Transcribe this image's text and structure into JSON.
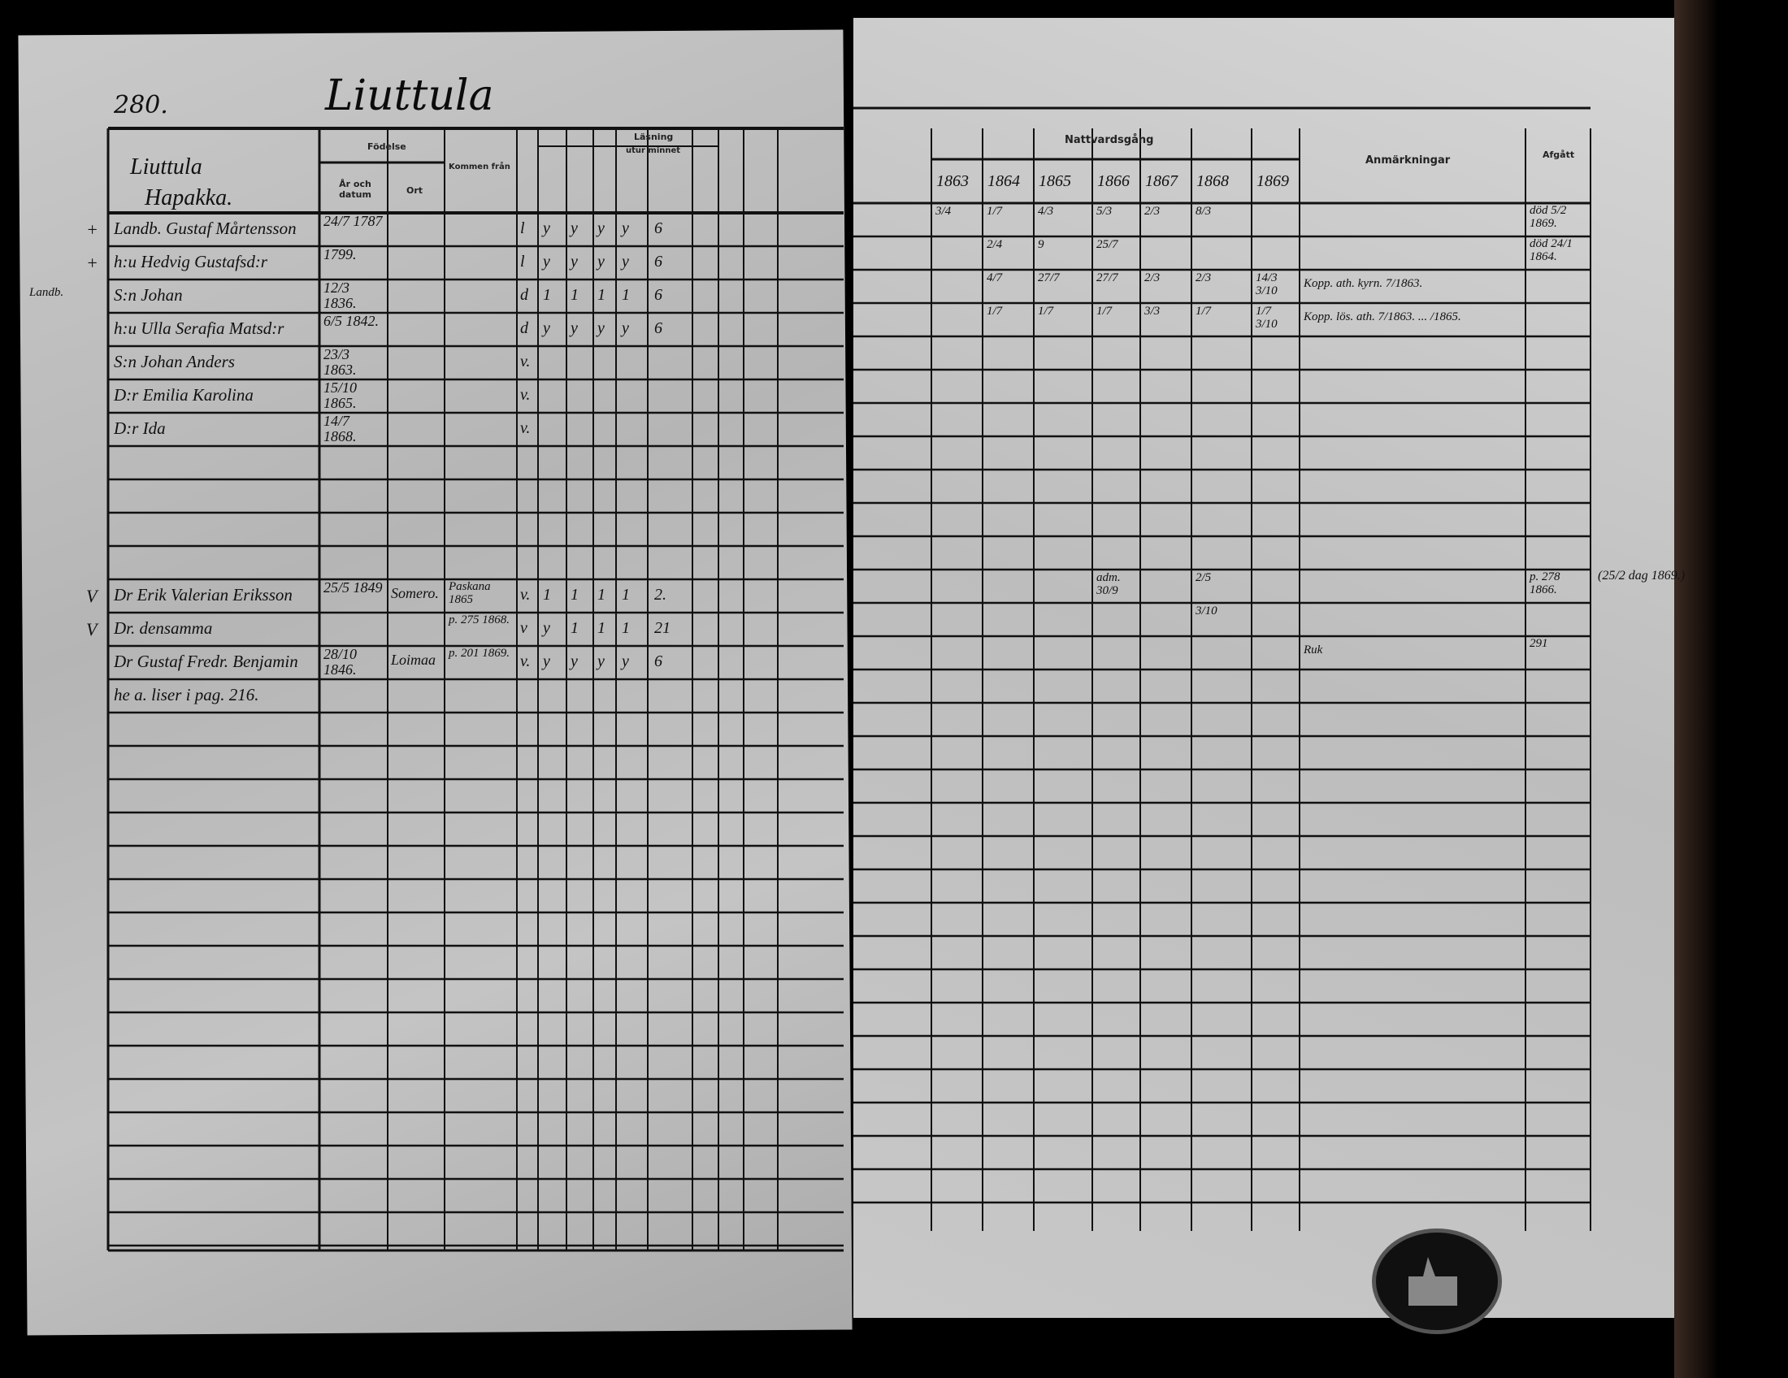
{
  "left_page": {
    "page_number": "280.",
    "village": "Liuttula",
    "household": [
      "Liuttula",
      "Hapakka."
    ],
    "headers": {
      "birth": "Födelse",
      "year_date": "År och datum",
      "place": "Ort",
      "came_from": "Kommen från",
      "reading": "Läsning",
      "from_memory": "utur minnet"
    },
    "rows": [
      {
        "row": 0,
        "mark": "+",
        "name": "Landb. Gustaf Mårtensson",
        "born": "24/7 1787",
        "marks": [
          "l",
          "y",
          "y",
          "y",
          "y",
          "6"
        ]
      },
      {
        "row": 1,
        "mark": "+",
        "name": "h:u Hedvig Gustafsd:r",
        "born": "1799.",
        "marks": [
          "l",
          "y",
          "y",
          "y",
          "y",
          "6"
        ]
      },
      {
        "row": 2,
        "mark": "Landb.",
        "name": "S:n Johan",
        "born": "12/3 1836.",
        "marks": [
          "d",
          "1",
          "1",
          "1",
          "1",
          "6"
        ]
      },
      {
        "row": 3,
        "mark": "",
        "name": "h:u Ulla Serafia Matsd:r",
        "born": "6/5 1842.",
        "marks": [
          "d",
          "y",
          "y",
          "y",
          "y",
          "6"
        ]
      },
      {
        "row": 4,
        "mark": "",
        "name": "S:n Johan Anders",
        "born": "23/3 1863.",
        "marks": [
          "v."
        ]
      },
      {
        "row": 5,
        "mark": "",
        "name": "D:r Emilia Karolina",
        "born": "15/10 1865.",
        "marks": [
          "v."
        ]
      },
      {
        "row": 6,
        "mark": "",
        "name": "D:r Ida",
        "born": "14/7 1868.",
        "marks": [
          "v."
        ]
      },
      {
        "row": 11,
        "mark": "V",
        "name": "Dr Erik Valerian Eriksson",
        "born": "25/5 1849",
        "place": "Somero.",
        "came_from": "Paskana 1865",
        "marks": [
          "v.",
          "1",
          "1",
          "1",
          "1",
          "2."
        ]
      },
      {
        "row": 12,
        "mark": "V",
        "name": "Dr. densamma",
        "born": "",
        "came_from": "p. 275 1868.",
        "marks": [
          "v",
          "y",
          "1",
          "1",
          "1",
          "21"
        ]
      },
      {
        "row": 13,
        "mark": "",
        "name": "Dr Gustaf Fredr. Benjamin",
        "born": "28/10 1846.",
        "place": "Loimaa",
        "came_from": "p. 201 1869.",
        "marks": [
          "v.",
          "y",
          "y",
          "y",
          "y",
          "6"
        ]
      },
      {
        "row": 14,
        "mark": "",
        "name": "he a. liser i pag. 216.",
        "born": "",
        "marks": []
      }
    ]
  },
  "right_page": {
    "headers": {
      "communion": "Nattvardsgång",
      "remarks": "Anmärkningar",
      "departed": "Afgått"
    },
    "years": [
      "1863",
      "1864",
      "1865",
      "1866",
      "1867",
      "1868",
      "1869"
    ],
    "rows": [
      {
        "row": 0,
        "communion": [
          "3/4",
          "1/7",
          "4/3",
          "5/3",
          "2/3",
          "8/3",
          ""
        ],
        "remarks": "",
        "departed": "död 5/2 1869."
      },
      {
        "row": 1,
        "communion": [
          "",
          "2/4",
          "9",
          "25/7",
          "",
          "",
          ""
        ],
        "remarks": "",
        "departed": "död 24/1 1864."
      },
      {
        "row": 2,
        "communion": [
          "",
          "4/7",
          "27/7",
          "27/7",
          "2/3",
          "2/3",
          "14/3 3/10"
        ],
        "remarks": "Kopp. ath. kyrn. 7/1863.",
        "departed": ""
      },
      {
        "row": 3,
        "communion": [
          "",
          "1/7",
          "1/7",
          "1/7",
          "3/3",
          "1/7",
          "1/7 3/10"
        ],
        "remarks": "Kopp. lös. ath. 7/1863. ...  /1865.",
        "departed": ""
      },
      {
        "row": 11,
        "communion": [
          "",
          "",
          "",
          "adm. 30/9",
          "",
          "2/5",
          ""
        ],
        "remarks": "",
        "departed": "p. 278 1866."
      },
      {
        "row": 12,
        "communion": [
          "",
          "",
          "",
          "",
          "",
          "3/10",
          ""
        ],
        "remarks": "",
        "departed": ""
      },
      {
        "row": 13,
        "communion": [
          "",
          "",
          "",
          "",
          "",
          "",
          ""
        ],
        "remarks": "Ruk",
        "departed": "291"
      }
    ],
    "margin_note": "(25/2 dag 1869.)"
  },
  "colors": {
    "background": "#000000",
    "paper": "#c4c4c4",
    "ink": "#111111"
  }
}
